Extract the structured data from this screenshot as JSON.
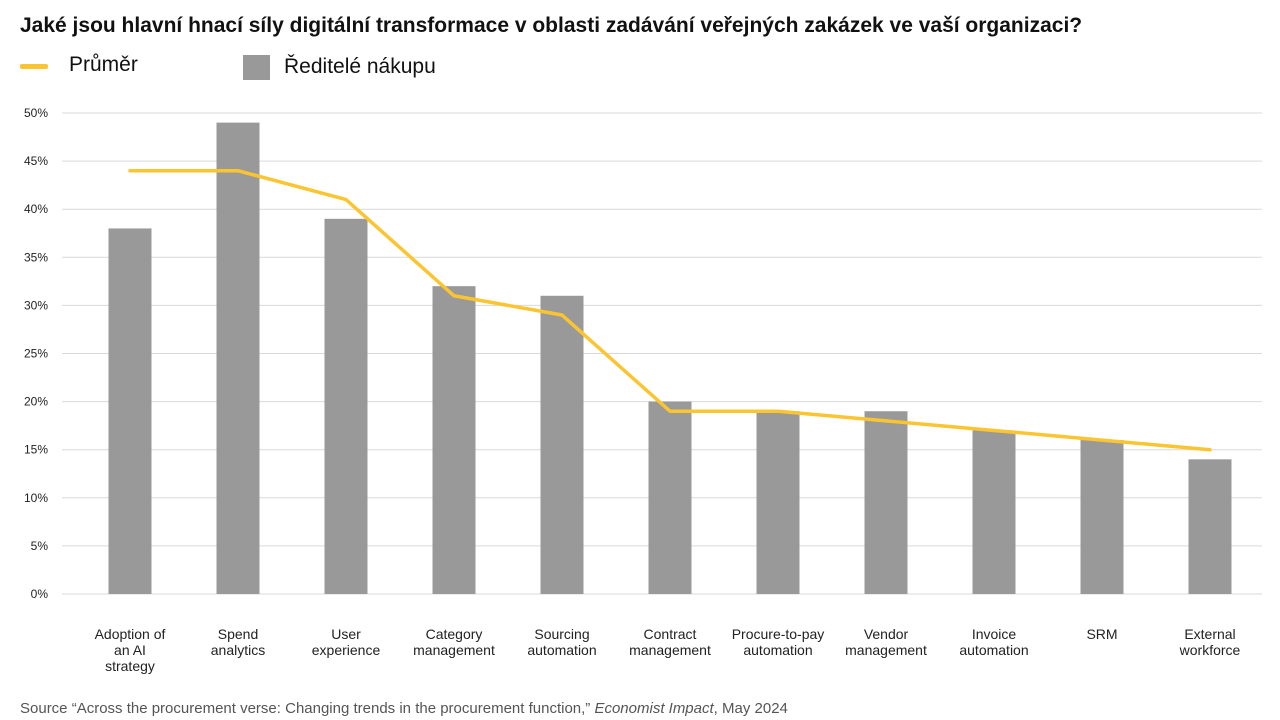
{
  "title": "Jaké jsou hlavní hnací síly digitální transformace v oblasti zadávání veřejných zakázek ve vaší organizaci?",
  "legend": {
    "line_label": "Průměr",
    "bar_label": "Ředitelé nákupu"
  },
  "source": {
    "prefix": "Source “Across the procurement verse: Changing trends in the procurement function,” ",
    "publisher": "Economist Impact",
    "suffix": ", May 2024"
  },
  "colors": {
    "bar": "#999999",
    "line": "#FBC531",
    "grid": "#d9d9d9",
    "tick_text": "#222222"
  },
  "chart_data": {
    "type": "bar",
    "categories": [
      [
        "Adoption of",
        "an AI",
        "strategy"
      ],
      [
        "Spend",
        "analytics"
      ],
      [
        "User",
        "experience"
      ],
      [
        "Category",
        "management"
      ],
      [
        "Sourcing",
        "automation"
      ],
      [
        "Contract",
        "management"
      ],
      [
        "Procure-to-pay",
        "automation"
      ],
      [
        "Vendor",
        "management"
      ],
      [
        "Invoice",
        "automation"
      ],
      [
        "SRM"
      ],
      [
        "External",
        "workforce"
      ]
    ],
    "series": [
      {
        "name": "Ředitelé nákupu",
        "kind": "bar",
        "values": [
          38,
          49,
          39,
          32,
          31,
          20,
          19,
          19,
          17,
          16,
          14
        ]
      },
      {
        "name": "Průměr",
        "kind": "line",
        "values": [
          44,
          44,
          41,
          31,
          29,
          19,
          19,
          18,
          17,
          16,
          15
        ]
      }
    ],
    "yticks": [
      "0%",
      "5%",
      "10%",
      "15%",
      "20%",
      "25%",
      "30%",
      "35%",
      "40%",
      "45%",
      "50%"
    ],
    "ylim": [
      0,
      50
    ],
    "grid": true,
    "legend_position": "top-left"
  }
}
